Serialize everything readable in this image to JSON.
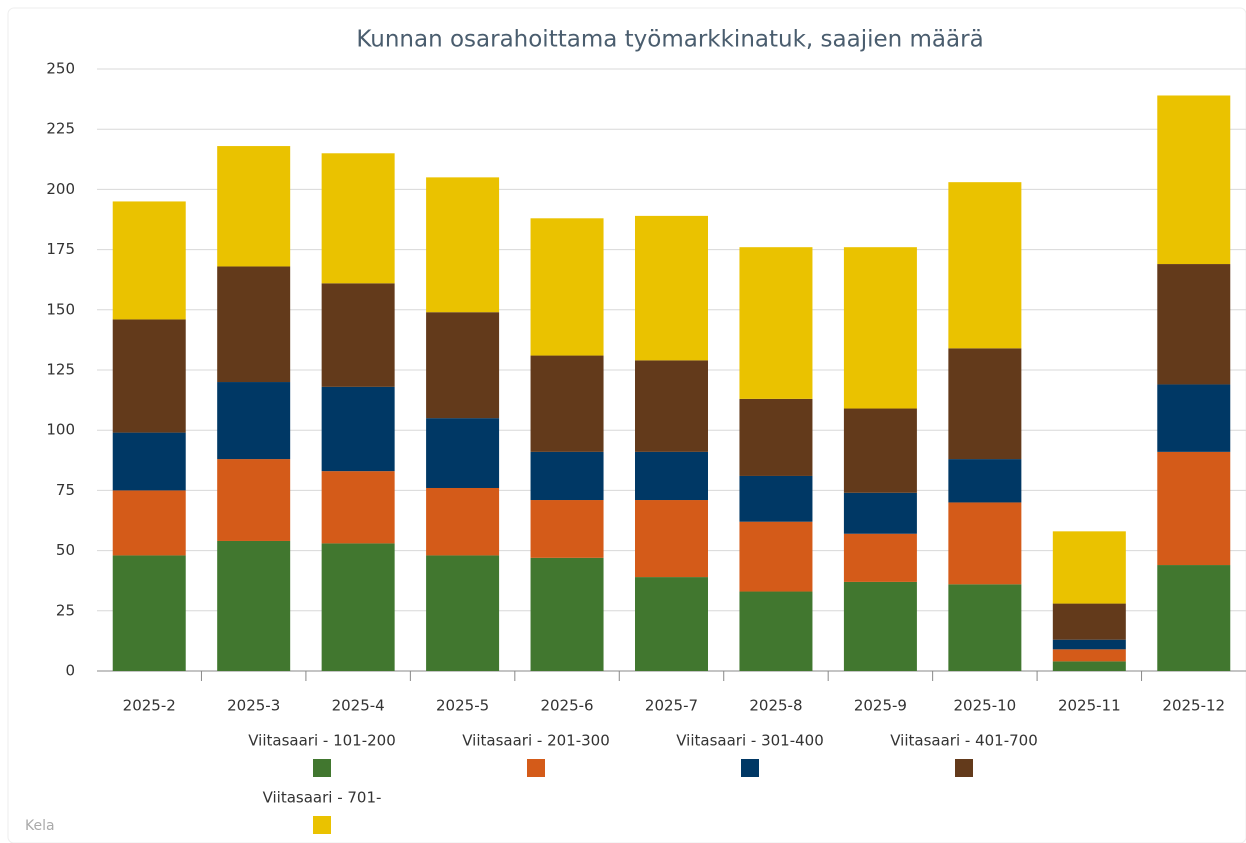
{
  "chart_data": {
    "type": "stacked_bar",
    "title": "Kunnan osarahoittama työmarkkinatuk, saajien määrä",
    "source": "Kela",
    "categories": [
      "2025-2",
      "2025-3",
      "2025-4",
      "2025-5",
      "2025-6",
      "2025-7",
      "2025-8",
      "2025-9",
      "2025-10",
      "2025-11",
      "2025-12"
    ],
    "series": [
      {
        "name": "Viitasaari - 101-200",
        "color": "#41772f",
        "values": [
          48,
          54,
          53,
          48,
          47,
          39,
          33,
          37,
          36,
          4,
          44
        ]
      },
      {
        "name": "Viitasaari - 201-300",
        "color": "#d45b19",
        "values": [
          27,
          34,
          30,
          28,
          24,
          32,
          29,
          20,
          34,
          5,
          47
        ]
      },
      {
        "name": "Viitasaari - 301-400",
        "color": "#003865",
        "values": [
          24,
          32,
          35,
          29,
          20,
          20,
          19,
          17,
          18,
          4,
          28
        ]
      },
      {
        "name": "Viitasaari - 401-700",
        "color": "#633a1b",
        "values": [
          47,
          48,
          43,
          44,
          40,
          38,
          32,
          35,
          46,
          15,
          50
        ]
      },
      {
        "name": "Viitasaari - 701-",
        "color": "#eac200",
        "values": [
          49,
          50,
          54,
          56,
          57,
          60,
          63,
          67,
          69,
          30,
          70
        ]
      }
    ],
    "ylim": [
      0,
      250
    ],
    "yticks": [
      0,
      25,
      50,
      75,
      100,
      125,
      150,
      175,
      200,
      225,
      250
    ],
    "grid": true
  }
}
